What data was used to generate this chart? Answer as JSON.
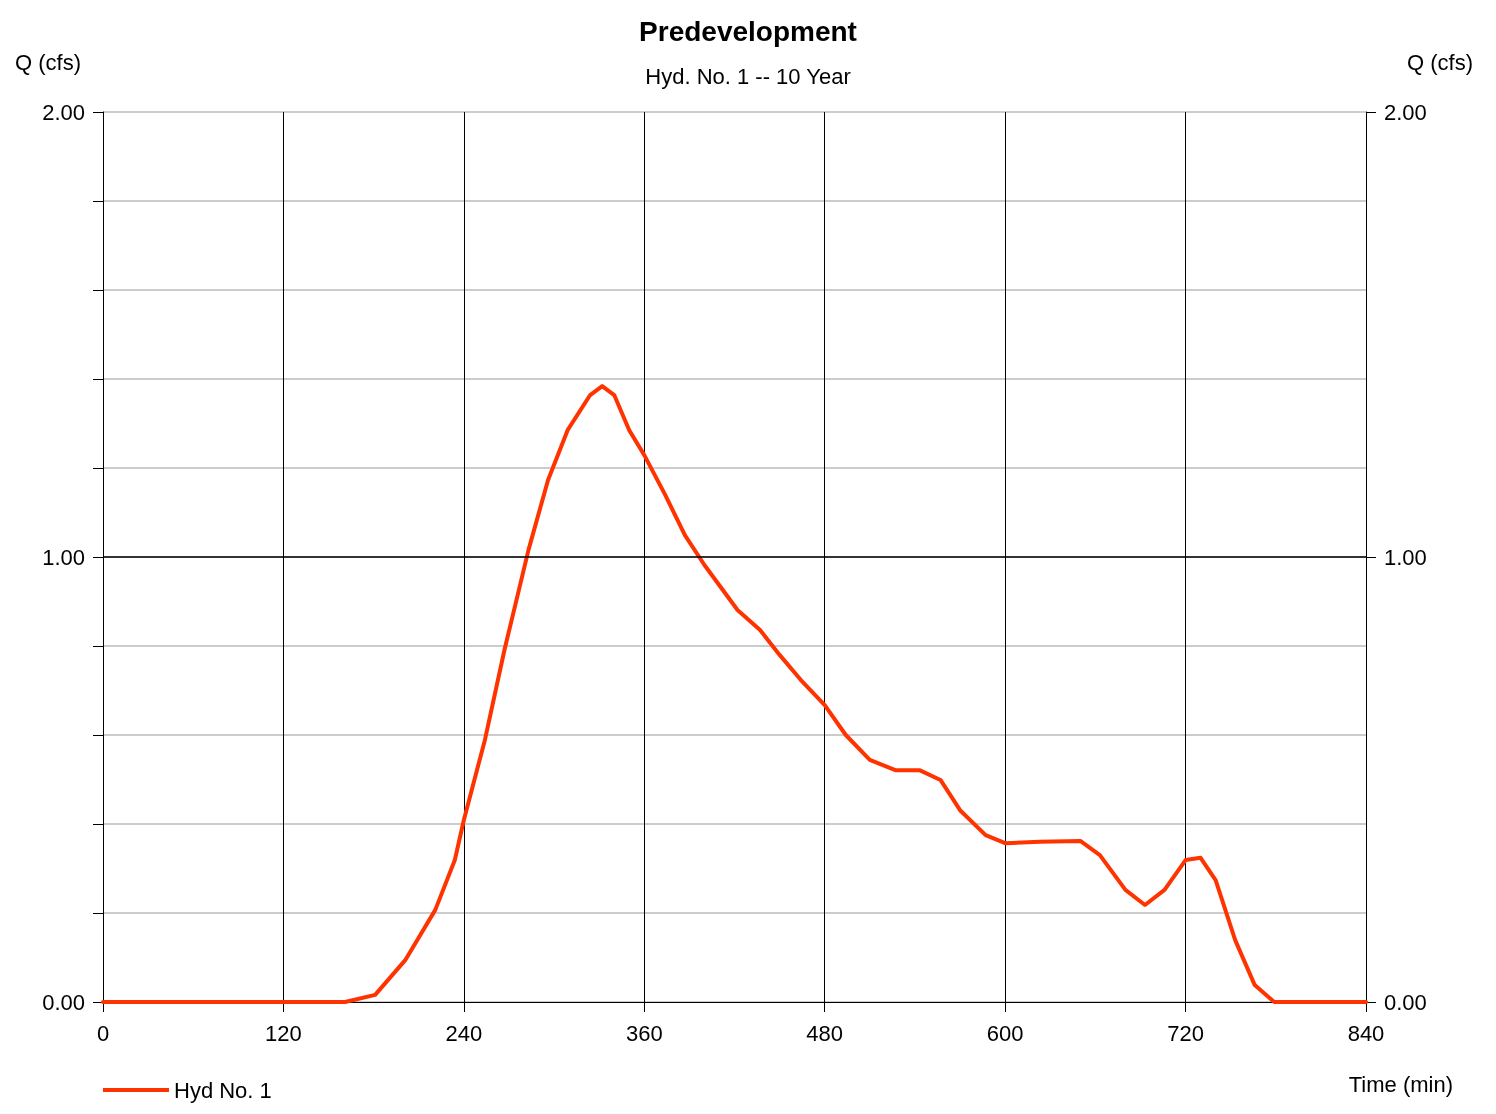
{
  "chart_data": {
    "type": "line",
    "title": "Predevelopment",
    "subtitle": "Hyd. No. 1 -- 10 Year",
    "xlabel": "Time (min)",
    "ylabel": "Q (cfs)",
    "y2label": "Q (cfs)",
    "xlim": [
      0,
      840
    ],
    "xticks": [
      0,
      120,
      240,
      360,
      480,
      600,
      720,
      840
    ],
    "ylim": [
      0,
      2
    ],
    "yticks": [
      {
        "value": 0,
        "label": "0.00"
      },
      {
        "value": 0.2,
        "label": null
      },
      {
        "value": 0.4,
        "label": null
      },
      {
        "value": 0.6,
        "label": null
      },
      {
        "value": 0.8,
        "label": null
      },
      {
        "value": 1,
        "label": "1.00"
      },
      {
        "value": 1.2,
        "label": null
      },
      {
        "value": 1.4,
        "label": null
      },
      {
        "value": 1.6,
        "label": null
      },
      {
        "value": 1.8,
        "label": null
      },
      {
        "value": 2,
        "label": "2.00"
      }
    ],
    "y2lim": [
      0,
      2
    ],
    "y2ticks": [
      {
        "value": 0,
        "label": "0.00"
      },
      {
        "value": 1,
        "label": "1.00"
      },
      {
        "value": 2,
        "label": "2.00"
      }
    ],
    "grid": true,
    "ref_lines": [
      {
        "axis": "y",
        "value": 1,
        "color": "#000000",
        "line_style": "solid"
      }
    ],
    "legend": "bottom left",
    "marker": "none",
    "line_style": "solid",
    "series": [
      {
        "name": "Hyd No. 1",
        "color": "#ff3300",
        "x": [
          0,
          161,
          181,
          201,
          221,
          234,
          240,
          254,
          267,
          283,
          296,
          309,
          324,
          332,
          340,
          350,
          360,
          374,
          387,
          400,
          422,
          437,
          450,
          464,
          480,
          494,
          510,
          527,
          543,
          557,
          570,
          587,
          600,
          623,
          650,
          663,
          680,
          693,
          706,
          720,
          730,
          740,
          753,
          766,
          779,
          840
        ],
        "values": [
          0,
          0,
          0.016,
          0.094,
          0.207,
          0.319,
          0.409,
          0.589,
          0.791,
          1.016,
          1.173,
          1.285,
          1.364,
          1.384,
          1.364,
          1.285,
          1.229,
          1.139,
          1.049,
          0.982,
          0.881,
          0.836,
          0.78,
          0.724,
          0.667,
          0.6,
          0.544,
          0.521,
          0.521,
          0.499,
          0.431,
          0.375,
          0.357,
          0.36,
          0.362,
          0.33,
          0.252,
          0.218,
          0.252,
          0.319,
          0.324,
          0.274,
          0.139,
          0.038,
          0,
          0
        ]
      }
    ]
  }
}
